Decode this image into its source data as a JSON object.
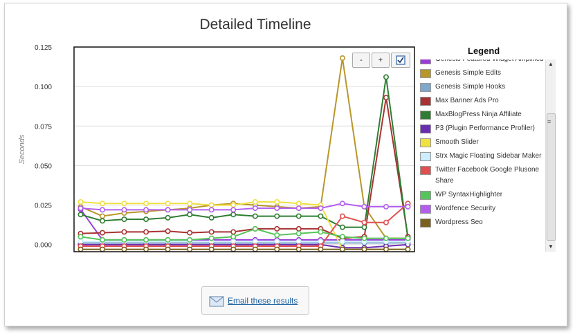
{
  "title": "Detailed Timeline",
  "controls": {
    "zoom_out": "-",
    "zoom_in": "+",
    "toggle_icon": "checkbox-icon"
  },
  "legend": {
    "title": "Legend"
  },
  "email": {
    "label": "Email these results",
    "icon": "email-envelope-icon"
  },
  "chart_data": {
    "type": "line",
    "title": "Detailed Timeline",
    "xlabel": "",
    "ylabel": "Seconds",
    "ylim": [
      -0.0045,
      0.125
    ],
    "yticks": [
      0.0,
      0.025,
      0.05,
      0.075,
      0.1,
      0.125
    ],
    "ytick_labels": [
      "0.000",
      "0.025",
      "0.050",
      "0.075",
      "0.100",
      "0.125"
    ],
    "x": [
      1,
      2,
      3,
      4,
      5,
      6,
      7,
      8,
      9,
      10,
      11,
      12,
      13,
      14,
      15,
      16
    ],
    "grid": true,
    "legend_position": "right",
    "series": [
      {
        "name": "Genesis Featured Widget Amplified",
        "color": "#9b3cd8",
        "values": [
          0.0223,
          0.003,
          0.003,
          0.003,
          0.003,
          0.003,
          0.003,
          0.003,
          0.003,
          0.003,
          0.003,
          0.003,
          0.003,
          0.003,
          0.003,
          0.003
        ]
      },
      {
        "name": "Genesis Simple Edits",
        "color": "#b8962a",
        "values": [
          0.024,
          0.018,
          0.02,
          0.021,
          0.022,
          0.023,
          0.025,
          0.026,
          0.025,
          0.024,
          0.023,
          0.024,
          0.118,
          0.024,
          0.004,
          0.004
        ]
      },
      {
        "name": "Genesis Simple Hooks",
        "color": "#7fa8cc",
        "values": [
          0.001,
          0.001,
          0.001,
          0.001,
          0.001,
          0.001,
          0.001,
          0.001,
          0.001,
          0.001,
          0.001,
          0.001,
          0.001,
          0.001,
          0.001,
          0.001
        ]
      },
      {
        "name": "Max Banner Ads Pro",
        "color": "#a83232",
        "values": [
          0.007,
          0.0075,
          0.008,
          0.008,
          0.0085,
          0.0075,
          0.008,
          0.008,
          0.01,
          0.01,
          0.01,
          0.01,
          0.004,
          0.005,
          0.093,
          0.005
        ]
      },
      {
        "name": "MaxBlogPress Ninja Affiliate",
        "color": "#2e7d32",
        "values": [
          0.019,
          0.015,
          0.016,
          0.016,
          0.017,
          0.019,
          0.017,
          0.019,
          0.018,
          0.018,
          0.018,
          0.018,
          0.011,
          0.011,
          0.106,
          0.004
        ]
      },
      {
        "name": "P3 (Plugin Performance Profiler)",
        "color": "#6a2db0",
        "values": [
          0.0,
          0.0,
          0.0,
          0.0,
          0.0,
          0.0,
          0.0,
          0.0,
          0.0,
          0.0,
          0.0,
          0.0,
          -0.002,
          -0.002,
          -0.001,
          0.0
        ]
      },
      {
        "name": "Smooth Slider",
        "color": "#f0e040",
        "values": [
          0.027,
          0.026,
          0.026,
          0.026,
          0.026,
          0.026,
          0.025,
          0.025,
          0.027,
          0.027,
          0.026,
          0.025,
          -0.003,
          -0.003,
          -0.003,
          -0.003
        ]
      },
      {
        "name": "Strx Magic Floating Sidebar Maker",
        "color": "#cceeff",
        "values": [
          0.002,
          0.002,
          0.002,
          0.002,
          0.002,
          0.002,
          0.002,
          0.002,
          0.002,
          0.002,
          0.002,
          0.002,
          0.002,
          0.002,
          0.002,
          0.002
        ]
      },
      {
        "name": "Twitter Facebook Google Plusone Share",
        "color": "#e05050",
        "values": [
          -0.001,
          -0.001,
          -0.001,
          -0.001,
          -0.001,
          -0.001,
          -0.001,
          -0.001,
          -0.001,
          -0.001,
          -0.001,
          -0.001,
          0.018,
          0.014,
          0.014,
          0.026
        ]
      },
      {
        "name": "WP SyntaxHighlighter",
        "color": "#55c45a",
        "values": [
          0.005,
          0.003,
          0.003,
          0.003,
          0.003,
          0.003,
          0.004,
          0.005,
          0.01,
          0.006,
          0.007,
          0.008,
          0.005,
          0.004,
          0.004,
          0.004
        ]
      },
      {
        "name": "Wordfence Security",
        "color": "#b45ef0",
        "values": [
          0.023,
          0.022,
          0.022,
          0.022,
          0.022,
          0.022,
          0.022,
          0.022,
          0.023,
          0.023,
          0.023,
          0.023,
          0.026,
          0.024,
          0.024,
          0.024
        ]
      },
      {
        "name": "Wordpress Seo",
        "color": "#7a6120",
        "values": [
          -0.003,
          -0.003,
          -0.003,
          -0.003,
          -0.003,
          -0.003,
          -0.003,
          -0.003,
          -0.003,
          -0.003,
          -0.003,
          -0.003,
          -0.003,
          -0.003,
          -0.003,
          -0.003
        ]
      }
    ]
  }
}
